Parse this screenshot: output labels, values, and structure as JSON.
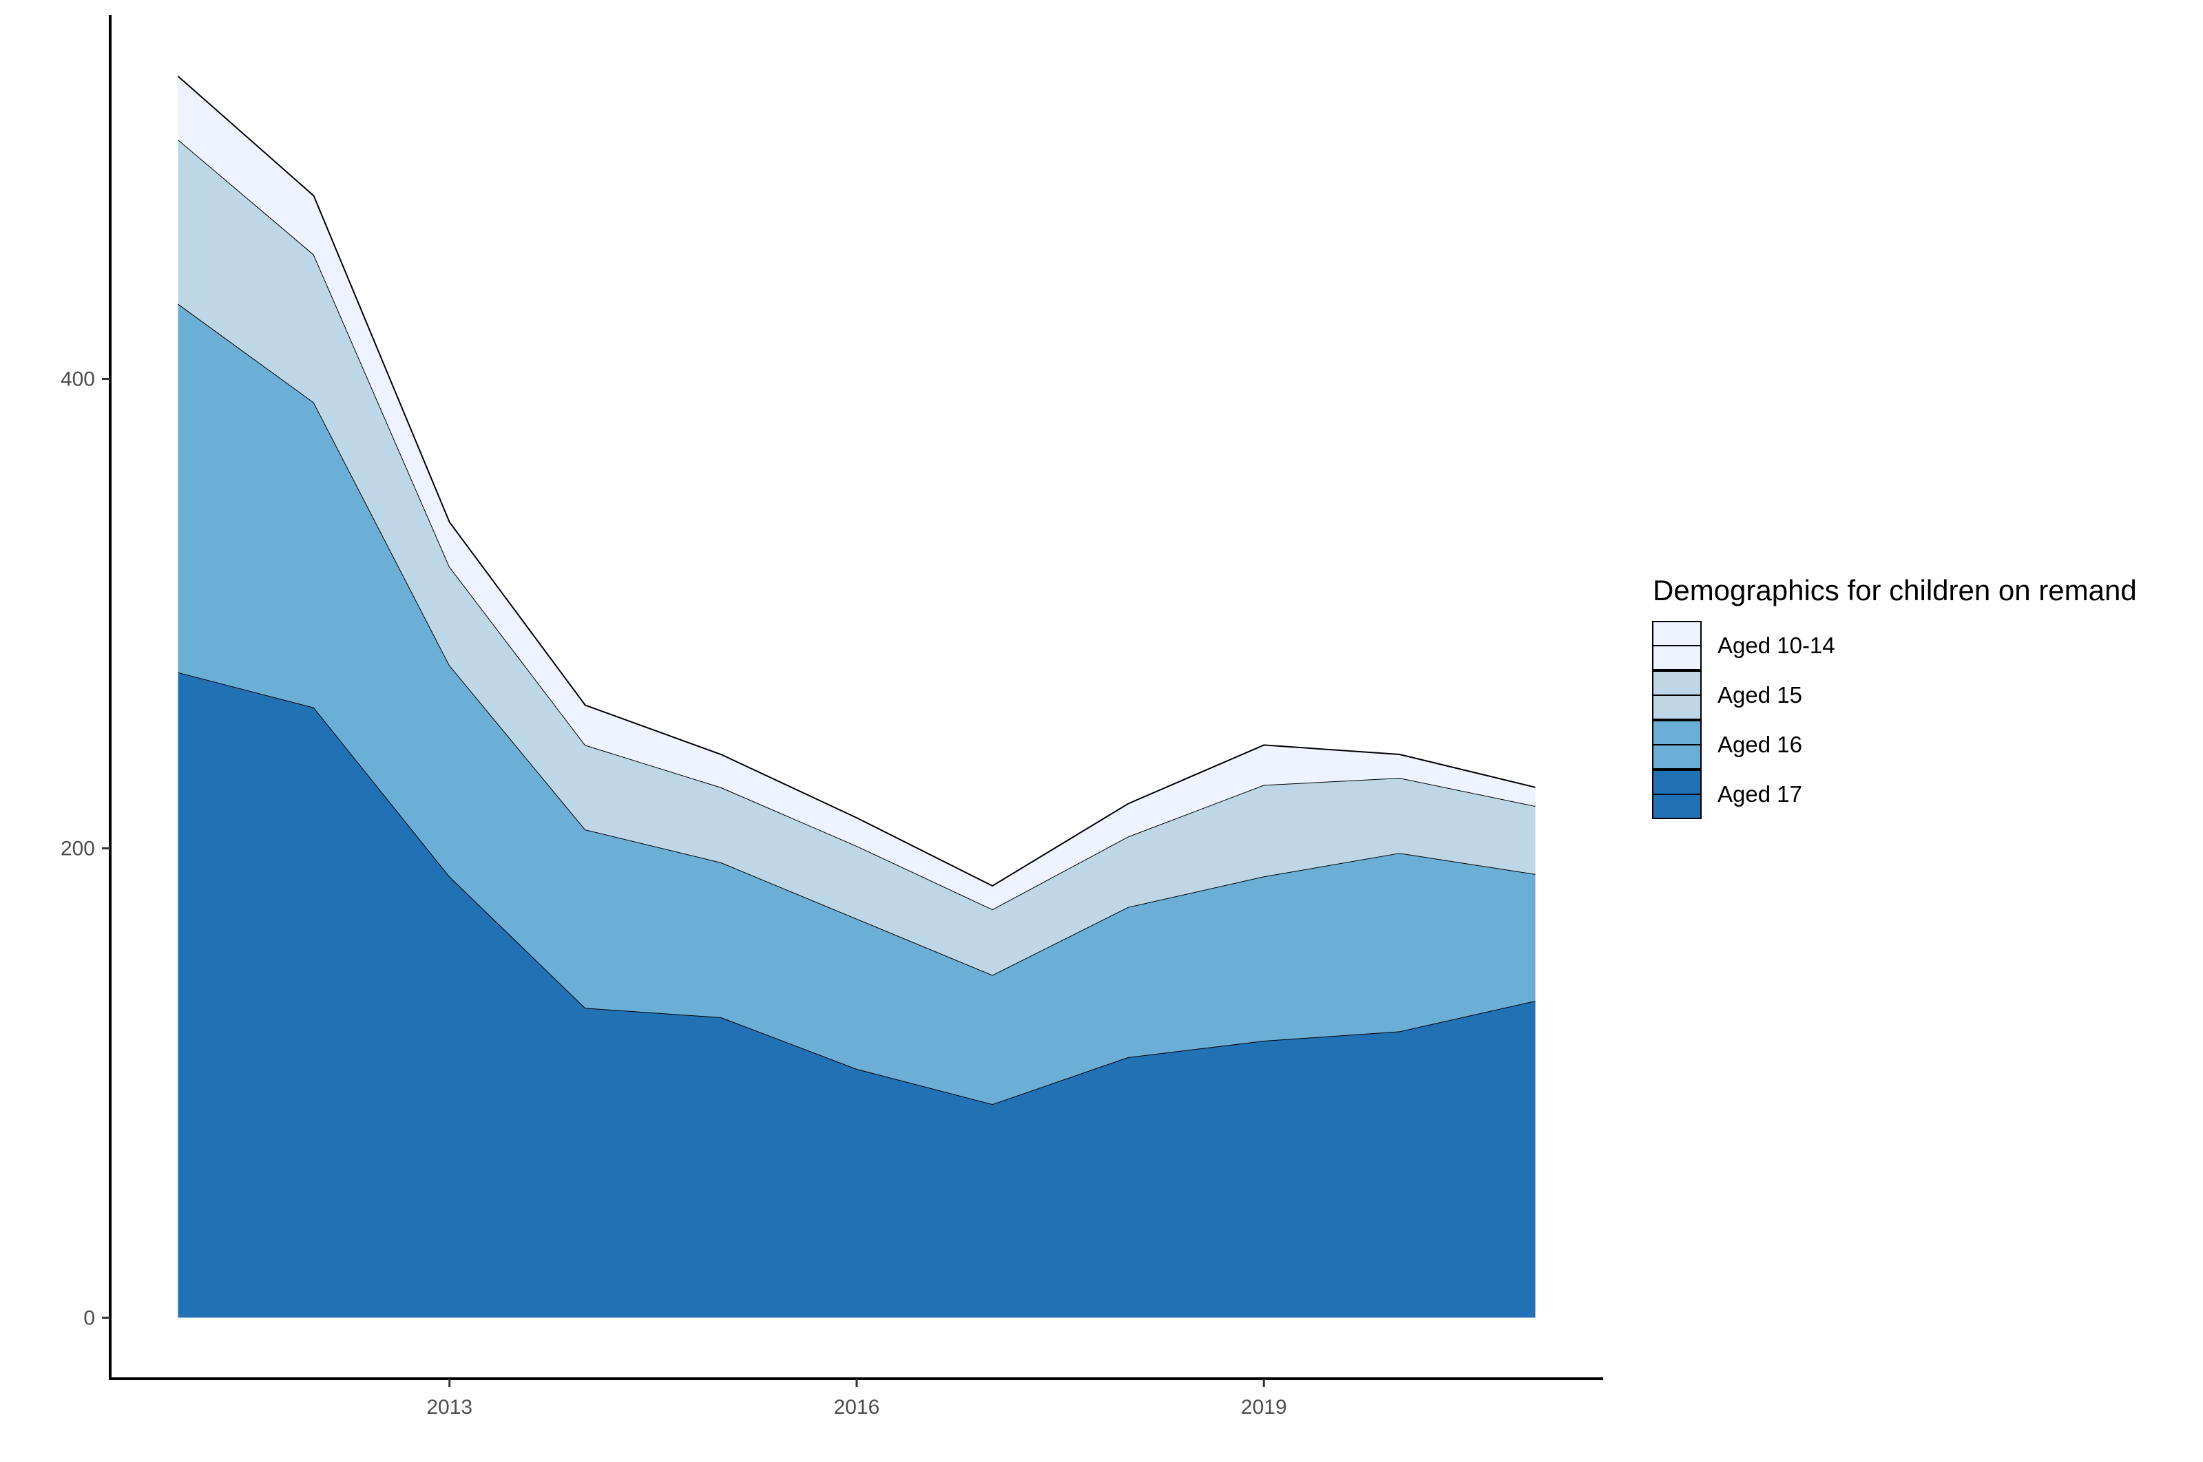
{
  "chart_data": {
    "type": "area",
    "stacked": true,
    "x": [
      2011,
      2012,
      2013,
      2014,
      2015,
      2016,
      2017,
      2018,
      2019,
      2020,
      2021
    ],
    "series": [
      {
        "name": "Aged 17",
        "color": "#2171b5",
        "values": [
          275,
          260,
          188,
          132,
          128,
          106,
          91,
          111,
          118,
          122,
          135
        ]
      },
      {
        "name": "Aged 16",
        "color": "#6baed6",
        "values": [
          157,
          130,
          90,
          76,
          66,
          64,
          55,
          64,
          70,
          76,
          54
        ]
      },
      {
        "name": "Aged 15",
        "color": "#bdd7e7",
        "values": [
          70,
          63,
          42,
          36,
          32,
          31,
          28,
          30,
          39,
          32,
          29
        ]
      },
      {
        "name": "Aged 10-14",
        "color": "#eff3ff",
        "values": [
          27,
          25,
          19,
          17,
          14,
          12,
          10,
          14,
          17,
          10,
          8
        ]
      }
    ],
    "xticks": [
      "2013",
      "2016",
      "2019"
    ],
    "yticks": [
      "0",
      "200",
      "400"
    ],
    "xlim": [
      2010.5,
      2021.5
    ],
    "ylim": [
      -26,
      555
    ],
    "xlabel": "",
    "ylabel": "",
    "title": "",
    "grid": false,
    "legend": {
      "title": "Demographics for children on remand",
      "position": "right"
    }
  }
}
